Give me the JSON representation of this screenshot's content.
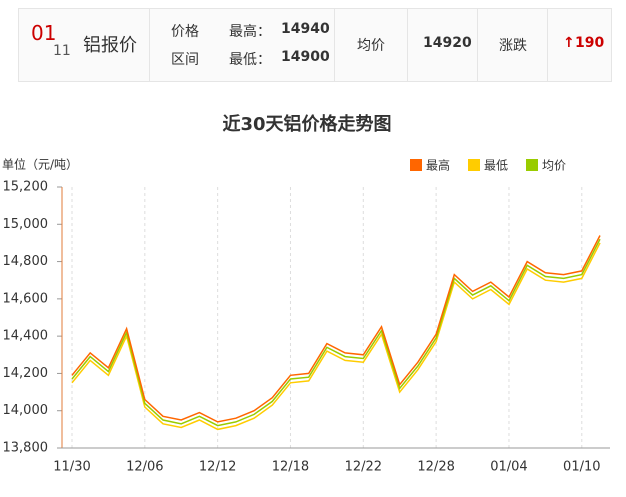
{
  "header": {
    "month": "01",
    "day": "11",
    "name": "铝报价",
    "range_label": [
      "价格",
      "区间"
    ],
    "high_label": "最高：",
    "high": 14940,
    "low_label": "最低：",
    "low": 14900,
    "avg_label": "均价",
    "avg": 14920,
    "change_label": "涨跌",
    "change": 190
  },
  "chart_data": {
    "type": "line",
    "title": "近30天铝价格走势图",
    "y_label": "单位（元/吨）",
    "categories": [
      "11/30",
      null,
      null,
      null,
      "12/06",
      null,
      null,
      null,
      "12/12",
      null,
      null,
      null,
      "12/18",
      null,
      null,
      null,
      "12/22",
      null,
      null,
      null,
      "12/28",
      null,
      null,
      null,
      "01/04",
      null,
      null,
      null,
      "01/10",
      null
    ],
    "series": [
      {
        "name": "最高",
        "color": "#ff6600",
        "values": [
          14190,
          14310,
          14230,
          14440,
          14060,
          13970,
          13950,
          13990,
          13940,
          13960,
          14000,
          14070,
          14190,
          14200,
          14360,
          14310,
          14300,
          14450,
          14140,
          14260,
          14410,
          14730,
          14640,
          14690,
          14610,
          14800,
          14740,
          14730,
          14750,
          14940
        ]
      },
      {
        "name": "最低",
        "color": "#ffcc00",
        "values": [
          14150,
          14270,
          14190,
          14400,
          14020,
          13930,
          13910,
          13950,
          13900,
          13920,
          13960,
          14030,
          14150,
          14160,
          14320,
          14270,
          14260,
          14410,
          14100,
          14220,
          14370,
          14690,
          14600,
          14650,
          14570,
          14760,
          14700,
          14690,
          14710,
          14900
        ]
      },
      {
        "name": "均价",
        "color": "#99cc00",
        "values": [
          14170,
          14290,
          14210,
          14420,
          14040,
          13950,
          13930,
          13970,
          13920,
          13940,
          13980,
          14050,
          14170,
          14180,
          14340,
          14290,
          14280,
          14430,
          14120,
          14240,
          14390,
          14710,
          14620,
          14670,
          14590,
          14780,
          14720,
          14710,
          14730,
          14920
        ]
      }
    ],
    "ylim": [
      13800,
      15200
    ],
    "yticks": [
      {
        "value": 13800,
        "label": "13,800"
      },
      {
        "value": 14000,
        "label": "14,000"
      },
      {
        "value": 14200,
        "label": "14,200"
      },
      {
        "value": 14400,
        "label": "14,400"
      },
      {
        "value": 14600,
        "label": "14,600"
      },
      {
        "value": 14800,
        "label": "14,800"
      },
      {
        "value": 15000,
        "label": "15,000"
      },
      {
        "value": 15200,
        "label": "15,200"
      }
    ],
    "grid": true,
    "legend": "top-right"
  }
}
